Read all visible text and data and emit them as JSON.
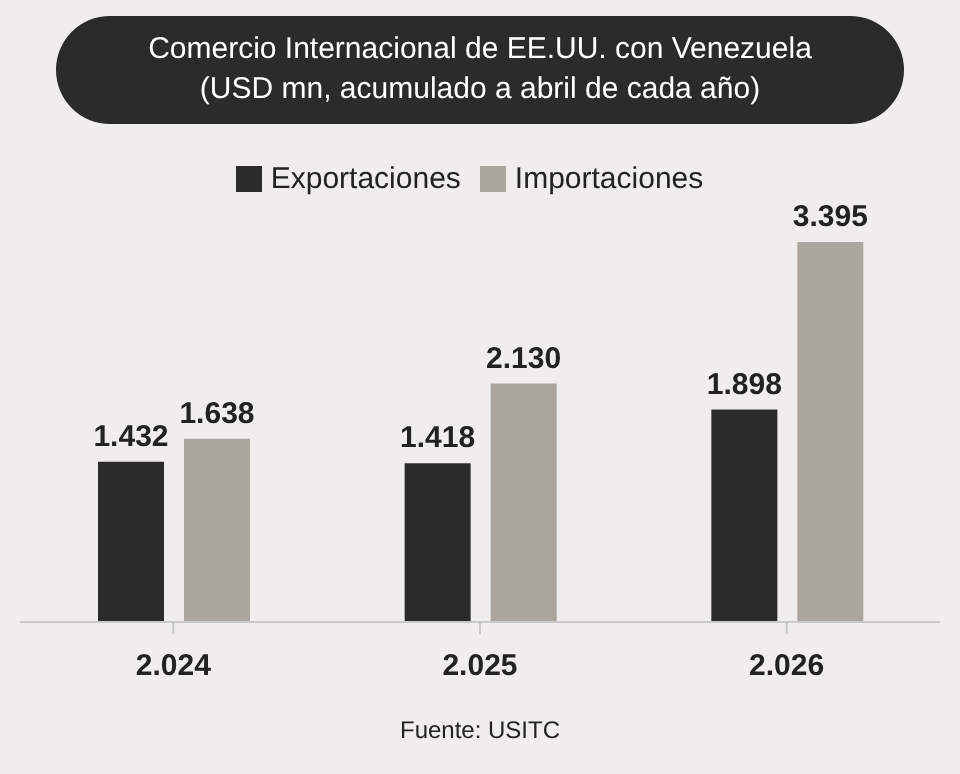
{
  "chart_data": {
    "type": "bar",
    "title": "Comercio Internacional de EE.UU. con Venezuela",
    "subtitle": "(USD mn, acumulado a abril de cada año)",
    "categories": [
      "2.024",
      "2.025",
      "2.026"
    ],
    "series": [
      {
        "name": "Exportaciones",
        "color": "#2b2b2b",
        "values": [
          1432,
          1418,
          1898
        ],
        "value_labels": [
          "1.432",
          "1.418",
          "1.898"
        ]
      },
      {
        "name": "Importaciones",
        "color": "#aaa59e",
        "values": [
          1638,
          2130,
          3395
        ],
        "value_labels": [
          "1.638",
          "2.130",
          "3.395"
        ]
      }
    ],
    "legend": "top",
    "annotations": [
      "Fuente: USITC"
    ]
  }
}
